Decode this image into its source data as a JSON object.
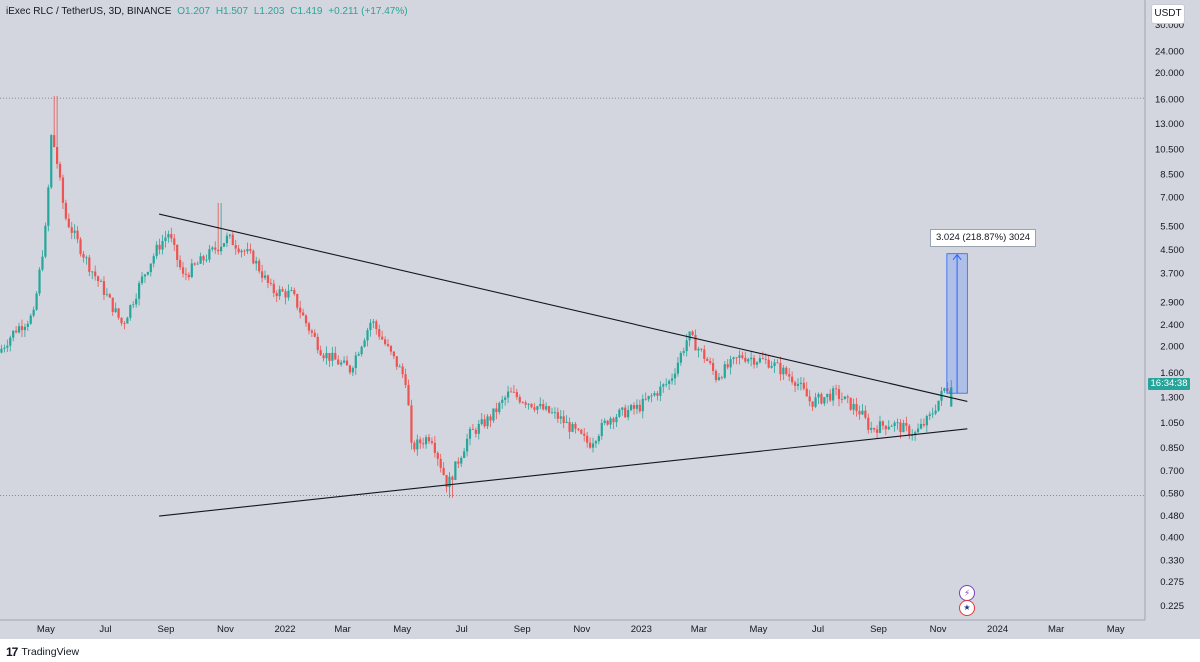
{
  "legend": {
    "symbol": "iExec RLC / TetherUS, 3D, BINANCE",
    "open": "O1.207",
    "high": "H1.507",
    "low": "L1.203",
    "close": "C1.419",
    "change": "+0.211 (+17.47%)"
  },
  "currency_button": "USDT",
  "last_price_tag": "16:34:38",
  "measure_label": "3.024 (218.87%) 3024",
  "branding": "TradingView",
  "colors": {
    "up": "#26a69a",
    "down": "#ef5350",
    "plot_bg": "#d3d6df",
    "measure": "#2962ff",
    "trendline": "#131722"
  },
  "icons": [
    "flash-event-icon",
    "us-flag-event-icon",
    "tradingview-logo-icon"
  ],
  "chart_data": {
    "type": "candlestick",
    "title": "iExec RLC / TetherUS, 3D, BINANCE",
    "y_scale": "log",
    "y_ticks": [
      30,
      24,
      20,
      16,
      13,
      10.5,
      8.5,
      7,
      5.5,
      4.5,
      3.7,
      2.9,
      2.4,
      2,
      1.6,
      1.3,
      1.05,
      0.85,
      0.7,
      0.58,
      0.48,
      0.4,
      0.33,
      0.275,
      0.225
    ],
    "y_tick_labels": [
      "30.000",
      "24.000",
      "20.000",
      "16.000",
      "13.000",
      "10.500",
      "8.500",
      "7.000",
      "5.500",
      "4.500",
      "3.700",
      "2.900",
      "2.400",
      "2.000",
      "1.600",
      "1.300",
      "1.050",
      "0.850",
      "0.700",
      "0.580",
      "0.480",
      "0.400",
      "0.330",
      "0.275",
      "0.225"
    ],
    "x_tick_labels": [
      "May",
      "Jul",
      "Sep",
      "Nov",
      "2022",
      "Mar",
      "May",
      "Jul",
      "Sep",
      "Nov",
      "2023",
      "Mar",
      "May",
      "Jul",
      "Sep",
      "Nov",
      "2024",
      "Mar",
      "May"
    ],
    "x_ticks": [
      "2021-05-01",
      "2021-07-01",
      "2021-09-01",
      "2021-11-01",
      "2022-01-01",
      "2022-03-01",
      "2022-05-01",
      "2022-07-01",
      "2022-09-01",
      "2022-11-01",
      "2023-01-01",
      "2023-03-01",
      "2023-05-01",
      "2023-07-01",
      "2023-09-01",
      "2023-11-01",
      "2024-01-01",
      "2024-03-01",
      "2024-05-01"
    ],
    "x_range": [
      "2021-03-15",
      "2024-05-31"
    ],
    "y_range": [
      0.2,
      37
    ],
    "price_key": [
      [
        "2021-03-15",
        1.9
      ],
      [
        "2021-04-01",
        2.3
      ],
      [
        "2021-04-20",
        2.6
      ],
      [
        "2021-05-04",
        6.0
      ],
      [
        "2021-05-07",
        12.0
      ],
      [
        "2021-05-12",
        10.5
      ],
      [
        "2021-05-22",
        6.0
      ],
      [
        "2021-06-15",
        4.0
      ],
      [
        "2021-07-01",
        3.2
      ],
      [
        "2021-07-20",
        2.4
      ],
      [
        "2021-08-10",
        3.6
      ],
      [
        "2021-08-25",
        4.6
      ],
      [
        "2021-09-05",
        5.2
      ],
      [
        "2021-09-20",
        3.6
      ],
      [
        "2021-10-15",
        4.3
      ],
      [
        "2021-11-05",
        5.0
      ],
      [
        "2021-12-01",
        4.2
      ],
      [
        "2021-12-20",
        3.2
      ],
      [
        "2022-01-10",
        3.1
      ],
      [
        "2022-01-25",
        2.4
      ],
      [
        "2022-02-10",
        1.9
      ],
      [
        "2022-03-10",
        1.65
      ],
      [
        "2022-04-01",
        2.5
      ],
      [
        "2022-04-20",
        1.9
      ],
      [
        "2022-05-07",
        1.5
      ],
      [
        "2022-05-12",
        0.85
      ],
      [
        "2022-06-01",
        0.95
      ],
      [
        "2022-06-18",
        0.62
      ],
      [
        "2022-07-10",
        0.95
      ],
      [
        "2022-08-01",
        1.1
      ],
      [
        "2022-08-20",
        1.35
      ],
      [
        "2022-09-10",
        1.25
      ],
      [
        "2022-10-10",
        1.1
      ],
      [
        "2022-11-10",
        0.88
      ],
      [
        "2022-12-01",
        1.1
      ],
      [
        "2022-12-31",
        1.2
      ],
      [
        "2023-02-01",
        1.5
      ],
      [
        "2023-02-20",
        2.2
      ],
      [
        "2023-03-10",
        1.8
      ],
      [
        "2023-03-20",
        1.55
      ],
      [
        "2023-04-15",
        1.85
      ],
      [
        "2023-05-15",
        1.75
      ],
      [
        "2023-06-10",
        1.5
      ],
      [
        "2023-06-25",
        1.25
      ],
      [
        "2023-07-20",
        1.35
      ],
      [
        "2023-08-15",
        1.15
      ],
      [
        "2023-08-25",
        1.0
      ],
      [
        "2023-09-15",
        1.05
      ],
      [
        "2023-10-10",
        0.96
      ],
      [
        "2023-10-25",
        1.1
      ],
      [
        "2023-11-10",
        1.419
      ]
    ],
    "horizontal_levels": [
      16.2,
      0.57
    ],
    "trendlines": [
      {
        "from": [
          "2021-08-25",
          6.1
        ],
        "to": [
          "2023-12-01",
          1.26
        ]
      },
      {
        "from": [
          "2021-08-25",
          0.48
        ],
        "to": [
          "2023-12-01",
          1.0
        ]
      }
    ],
    "measure": {
      "from": [
        "2023-11-10",
        1.35
      ],
      "to": [
        "2023-12-01",
        4.37
      ],
      "label": "3.024 (218.87%) 3024"
    },
    "last_candle": {
      "date": "2023-11-13",
      "open": 1.207,
      "high": 1.507,
      "low": 1.203,
      "close": 1.419,
      "change": 0.211,
      "change_pct": 17.47
    }
  }
}
